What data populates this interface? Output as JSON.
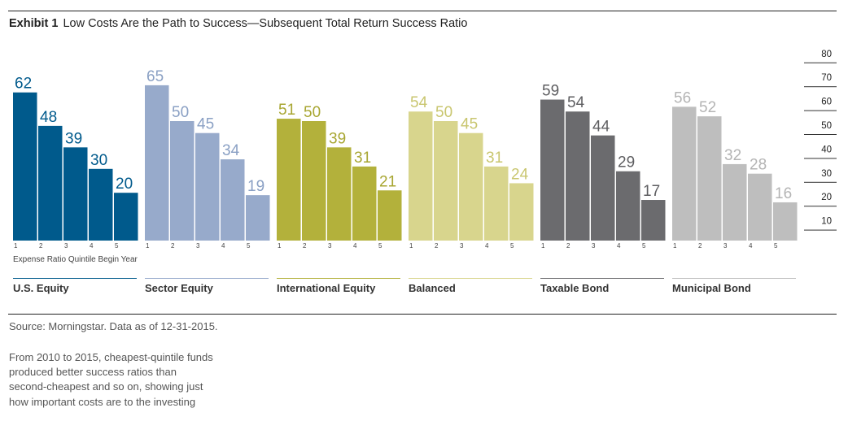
{
  "exhibit": "Exhibit 1",
  "subtitle": "Low Costs Are the Path to Success—Subsequent Total Return Success Ratio",
  "source": "Source: Morningstar. Data as of 12-31-2015.",
  "note_lines": [
    "From 2010 to 2015, cheapest-quintile funds",
    "produced better success ratios than",
    "second-cheapest and so on, showing just",
    "how important costs are to the investing"
  ],
  "chart_data": {
    "type": "bar",
    "title": "Low Costs Are the Path to Success—Subsequent Total Return Success Ratio",
    "xlabel": "Expense Ratio Quintile Begin Year",
    "ylabel": "",
    "categories": [
      "1",
      "2",
      "3",
      "4",
      "5"
    ],
    "ylim": [
      0,
      80
    ],
    "yticks": [
      10,
      20,
      30,
      40,
      50,
      60,
      70,
      80
    ],
    "series": [
      {
        "name": "U.S. Equity",
        "values": [
          62,
          48,
          39,
          30,
          20
        ],
        "color": "#005a8c",
        "label_color": "#005a8c"
      },
      {
        "name": "Sector Equity",
        "values": [
          65,
          50,
          45,
          34,
          19
        ],
        "color": "#97aacb",
        "label_color": "#8aa0c4"
      },
      {
        "name": "International Equity",
        "values": [
          51,
          50,
          39,
          31,
          21
        ],
        "color": "#b3b13b",
        "label_color": "#a8a632"
      },
      {
        "name": "Balanced",
        "values": [
          54,
          50,
          45,
          31,
          24
        ],
        "color": "#d8d58d",
        "label_color": "#c9c66f"
      },
      {
        "name": "Taxable Bond",
        "values": [
          59,
          54,
          44,
          29,
          17
        ],
        "color": "#6b6b6e",
        "label_color": "#5e5e61"
      },
      {
        "name": "Municipal Bond",
        "values": [
          56,
          52,
          32,
          28,
          16
        ],
        "color": "#bebebe",
        "label_color": "#b4b4b4"
      }
    ]
  }
}
